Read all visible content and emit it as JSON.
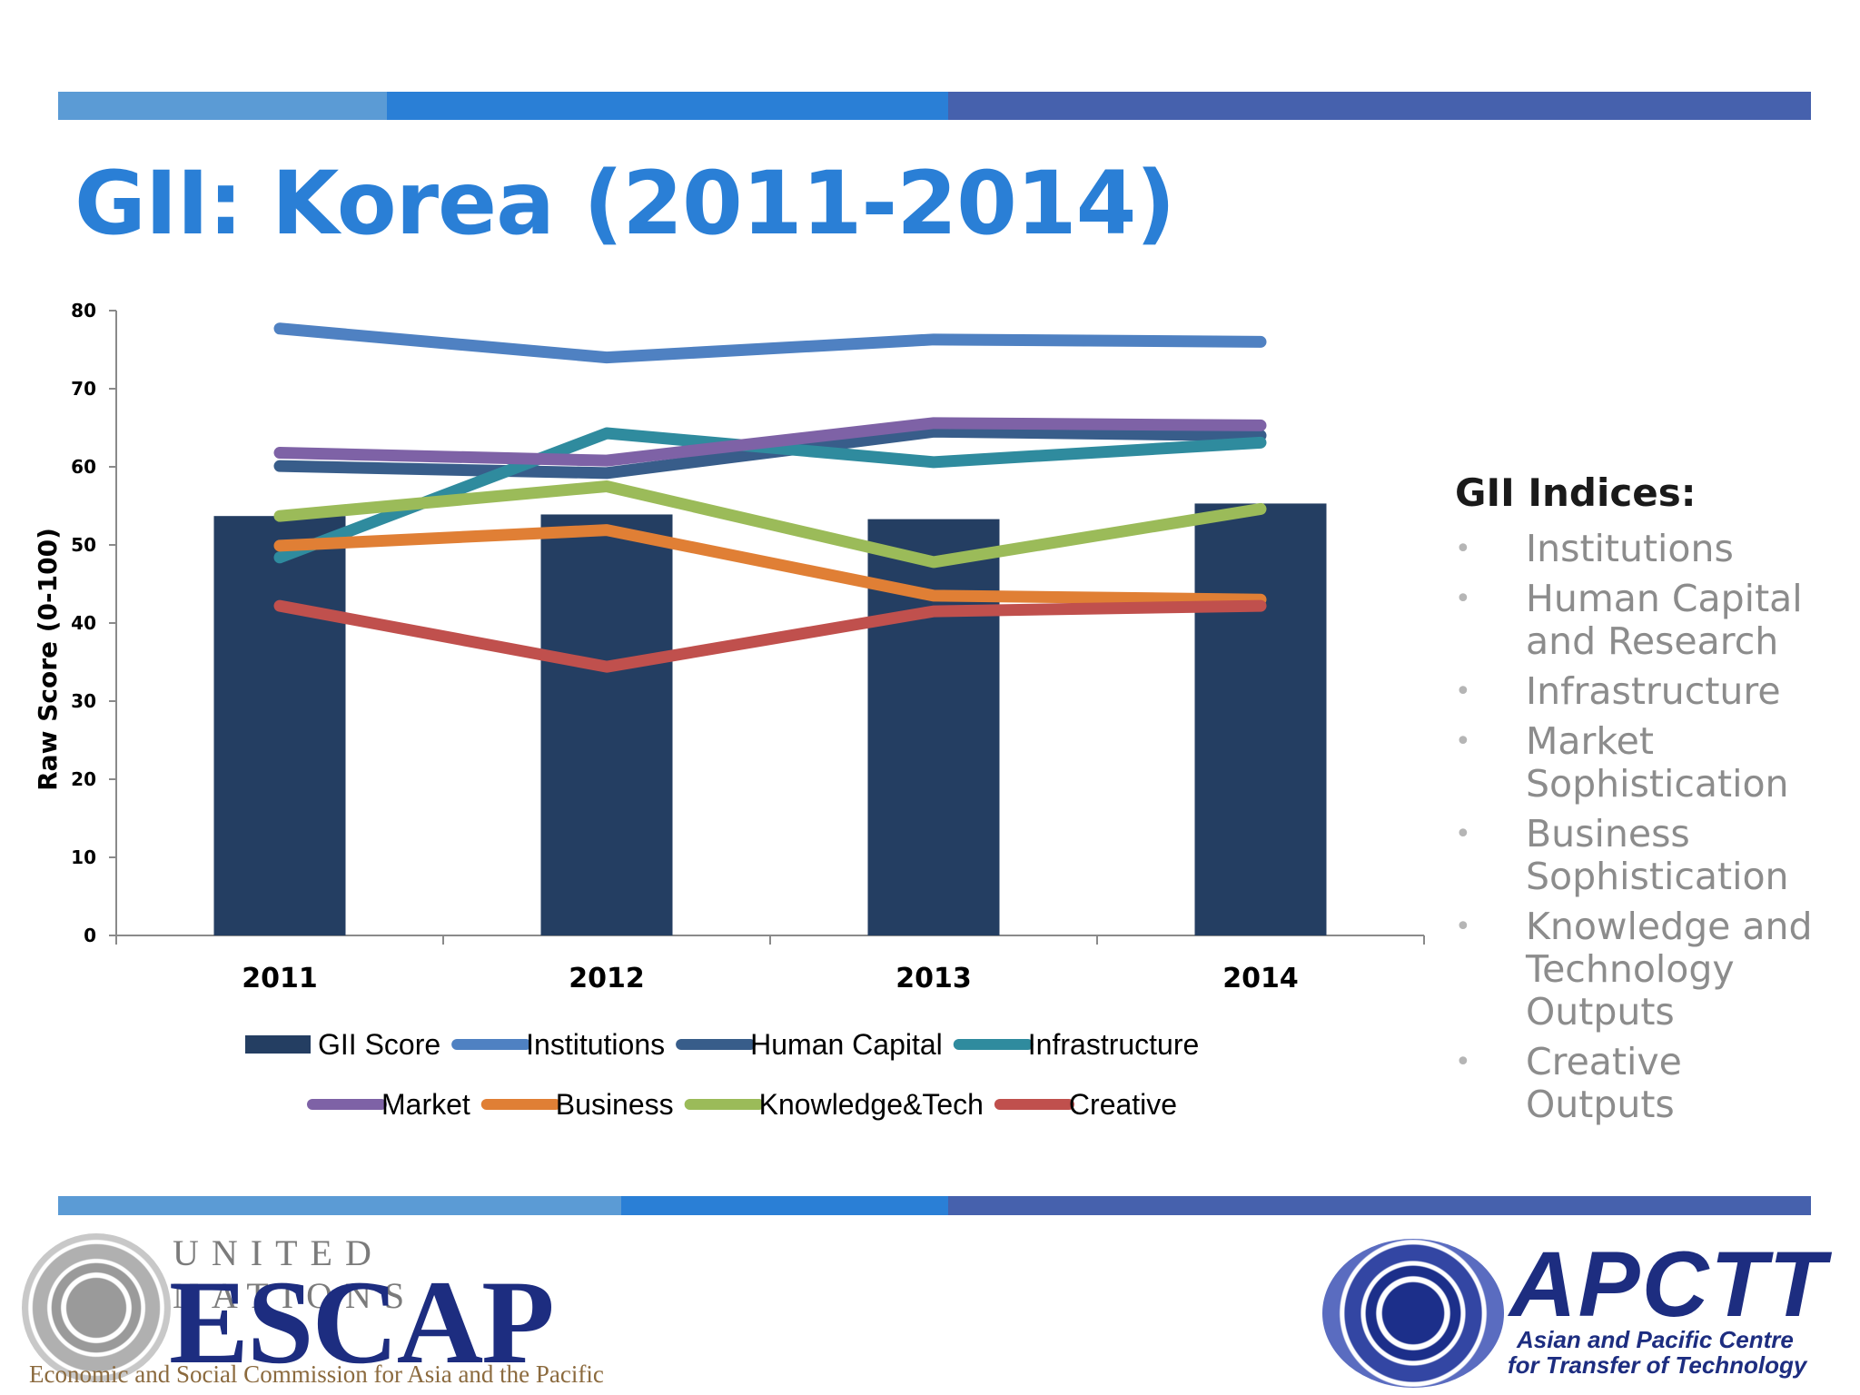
{
  "slide": {
    "title": "GII: Korea (2011-2014)"
  },
  "colors": {
    "strip_light": "#5b9bd5",
    "strip_mid": "#2a7fd6",
    "strip_dark": "#4661ad",
    "title": "#2a7fd6"
  },
  "chart_data": {
    "type": "bar",
    "categories": [
      "2011",
      "2012",
      "2013",
      "2014"
    ],
    "ylabel": "Raw Score (0-100)",
    "ylim": [
      0,
      80
    ],
    "yticks": [
      "0",
      "10",
      "20",
      "30",
      "40",
      "50",
      "60",
      "70",
      "80"
    ],
    "grid": false,
    "legend_position": "bottom",
    "series": [
      {
        "name": "GII Score",
        "kind": "bar",
        "color": "#243e62",
        "values": [
          53.7,
          53.9,
          53.3,
          55.3
        ]
      },
      {
        "name": "Institutions",
        "kind": "line",
        "color": "#4f81c2",
        "values": [
          77.7,
          74.0,
          76.3,
          76.0
        ]
      },
      {
        "name": "Human Capital",
        "kind": "line",
        "color": "#385d8a",
        "values": [
          60.1,
          59.2,
          64.5,
          64.0
        ]
      },
      {
        "name": "Infrastructure",
        "kind": "line",
        "color": "#2f8b9e",
        "values": [
          48.4,
          64.3,
          60.6,
          63.1
        ]
      },
      {
        "name": "Market",
        "kind": "line",
        "color": "#7e62a6",
        "values": [
          61.8,
          60.8,
          65.6,
          65.3
        ]
      },
      {
        "name": "Business",
        "kind": "line",
        "color": "#e07f35",
        "values": [
          49.9,
          51.9,
          43.5,
          43.0
        ]
      },
      {
        "name": "Knowledge&Tech",
        "kind": "line",
        "color": "#9bbb59",
        "values": [
          53.7,
          57.5,
          47.8,
          54.6
        ]
      },
      {
        "name": "Creative",
        "kind": "line",
        "color": "#c0504d",
        "values": [
          42.2,
          34.4,
          41.5,
          42.2
        ]
      }
    ]
  },
  "indices": {
    "title": "GII Indices:",
    "items": [
      "Institutions",
      "Human Capital and Research",
      "Infrastructure",
      "Market Sophistication",
      "Business Sophistication",
      "Knowledge and Technology Outputs",
      "Creative Outputs"
    ]
  },
  "logos": {
    "escap": {
      "org_line": "UNITED NATIONS",
      "wordmark": "ESCAP",
      "subtitle": "Economic and Social Commission for Asia and the Pacific"
    },
    "apctt": {
      "wordmark": "APCTT",
      "subtitle_line1": "Asian and Pacific Centre",
      "subtitle_line2": "for Transfer of Technology"
    }
  }
}
